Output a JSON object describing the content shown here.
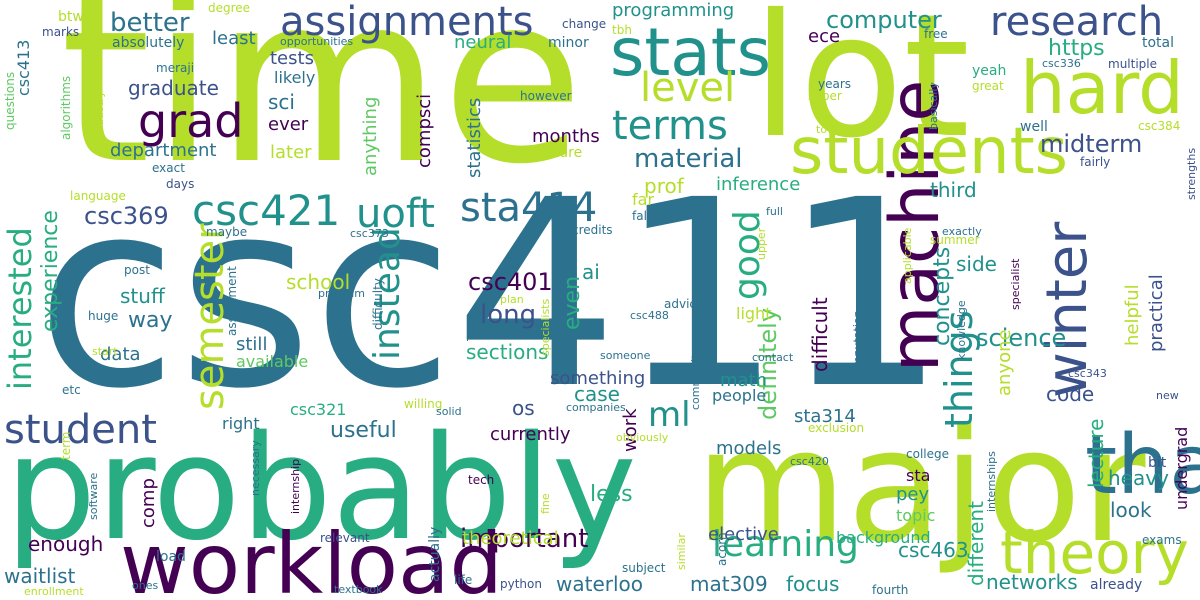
{
  "palette": {
    "dark_purple": "#440154",
    "indigo": "#3b528b",
    "blue": "#2c728e",
    "teal": "#21918c",
    "green": "#27ad81",
    "light_green": "#5ec962",
    "lime": "#b5de2b",
    "yellow": "#fde725",
    "background": "#ffffff"
  },
  "words": {
    "csc411": "csc411",
    "time": "time",
    "lot": "lot",
    "probably": "probably",
    "major": "major",
    "workload": "workload",
    "thanks": "thanks",
    "machine": "machine",
    "students": "students",
    "stats": "stats",
    "hard": "hard",
    "theory": "theory",
    "assignments": "assignments",
    "research": "research",
    "grad": "grad",
    "level": "level",
    "terms": "terms",
    "csc421": "csc421",
    "uoft": "uoft",
    "sta414": "sta414",
    "winter": "winter",
    "student": "student",
    "semester": "semester",
    "interested": "interested",
    "instead": "instead",
    "things": "things",
    "learning": "learning",
    "good": "good",
    "ml": "ml",
    "computer": "computer",
    "better": "better",
    "midterm": "midterm",
    "https": "https",
    "material": "material",
    "important": "important",
    "csc369": "csc369",
    "experience": "experience",
    "concepts": "concepts",
    "science": "science",
    "csc401": "csc401",
    "long": "long",
    "definitely": "definitely",
    "waitlist": "waitlist",
    "mat309": "mat309",
    "focus": "focus",
    "csc463": "csc463",
    "waterloo": "waterloo",
    "models": "models",
    "networks": "networks",
    "useful": "useful",
    "sections": "sections",
    "department": "department",
    "graduate": "graduate",
    "tests": "tests",
    "least": "least",
    "neural": "neural",
    "programming": "programming",
    "ece": "ece",
    "sci": "sci",
    "ever": "ever",
    "likely": "likely",
    "later": "later",
    "statistics": "statistics",
    "compsci": "compsci",
    "anything": "anything",
    "months": "months",
    "prof": "prof",
    "inference": "inference",
    "third": "third",
    "side": "side",
    "difficult": "difficult",
    "code": "code",
    "anyone": "anyone",
    "helpful": "helpful",
    "practical": "practical",
    "lecture": "lecture",
    "undergrad": "undergrad",
    "heavy": "heavy",
    "look": "look",
    "elective": "elective",
    "different": "different",
    "pey": "pey",
    "topic": "topic",
    "sta": "sta",
    "background": "background",
    "theoretical": "theoretical",
    "less": "less",
    "work": "work",
    "currently": "currently",
    "enough": "enough",
    "comp": "comp",
    "os": "os",
    "case": "case",
    "something": "something",
    "even": "even",
    "ai": "ai",
    "school": "school",
    "stuff": "stuff",
    "way": "way",
    "data": "data",
    "still": "still",
    "available": "available",
    "math": "math",
    "people": "people",
    "sta314": "sta314",
    "csc321": "csc321",
    "right": "right",
    "light": "light",
    "btw": "btw",
    "csc413": "csc413",
    "marks": "marks",
    "questions": "questions",
    "algorithms": "algorithms",
    "absolutely": "absolutely",
    "degree": "degree",
    "opportunities": "opportunities",
    "minor": "minor",
    "change": "change",
    "meraji": "meraji",
    "industry": "industry",
    "however": "however",
    "future": "future",
    "exact": "exact",
    "days": "days",
    "language": "language",
    "far": "far",
    "fall": "fall",
    "credits": "credits",
    "csc373": "csc373",
    "maybe": "maybe",
    "post": "post",
    "assignment": "assignment",
    "difficulty": "difficulty",
    "program": "program",
    "huge": "huge",
    "plan": "plan",
    "point": "point",
    "specialists": "specialists",
    "start": "start",
    "etc": "etc",
    "willing": "willing",
    "solid": "solid",
    "companies": "companies",
    "community": "community",
    "obviously": "obviously",
    "term": "term",
    "software": "software",
    "necessary": "necessary",
    "internship": "internship",
    "relevant": "relevant",
    "tech": "tech",
    "fine": "fine",
    "similar": "similar",
    "subject": "subject",
    "python": "python",
    "life": "life",
    "textbook": "textbook",
    "ones": "ones",
    "enrollment": "enrollment",
    "load": "load",
    "advice": "advice",
    "csc488": "csc488",
    "someone": "someone",
    "contact": "contact",
    "upper": "upper",
    "full": "full",
    "exactly": "exactly",
    "summer": "summer",
    "applicable": "applicable",
    "towards": "towards",
    "super": "super",
    "years": "years",
    "basically": "basically",
    "computation": "computation",
    "knowledge": "knowledge",
    "specialist": "specialist",
    "free": "free",
    "tbh": "tbh",
    "csc336": "csc336",
    "great": "great",
    "yeah": "yeah",
    "total": "total",
    "multiple": "multiple",
    "csc384": "csc384",
    "well": "well",
    "fairly": "fairly",
    "strengths": "strengths",
    "csc343": "csc343",
    "new": "new",
    "exclusion": "exclusion",
    "csc420": "csc420",
    "college": "college",
    "internships": "internships",
    "bit": "bit",
    "exams": "exams",
    "acorn": "acorn",
    "fourth": "fourth",
    "already": "already",
    "actually": "actually"
  }
}
